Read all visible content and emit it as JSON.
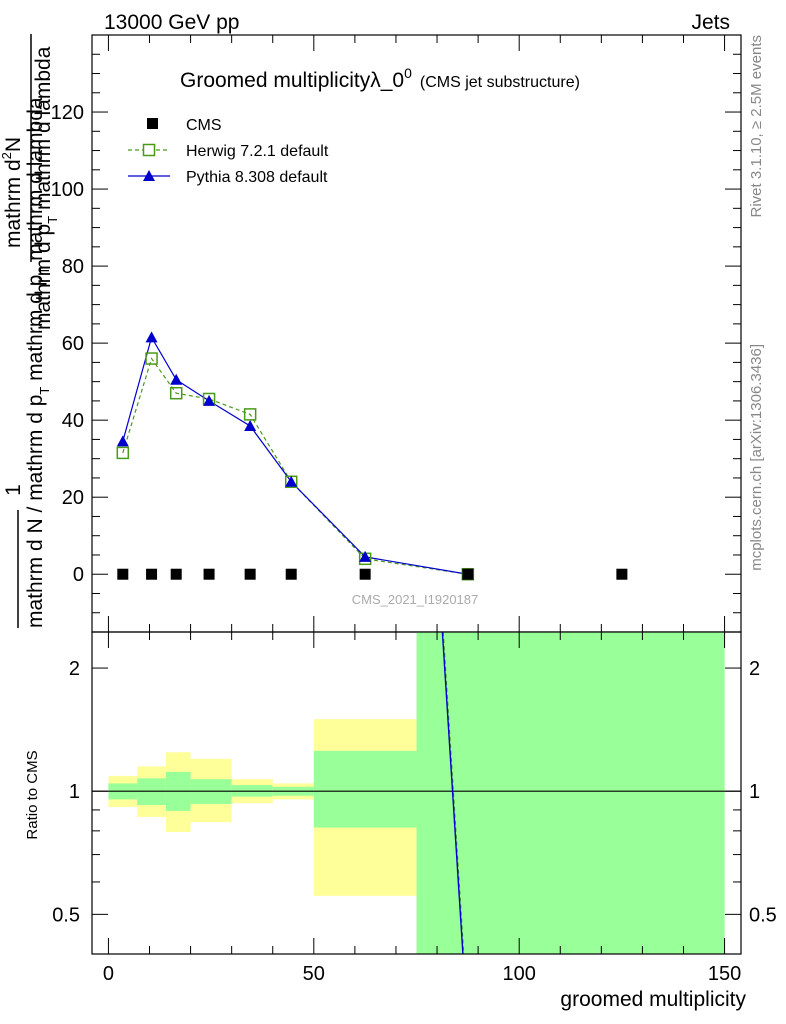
{
  "header": {
    "left": "13000 GeV pp",
    "right": "Jets"
  },
  "side_labels": {
    "rivet": "Rivet 3.1.10, ≥ 2.5M events",
    "mcplots": "mcplots.cern.ch [arXiv:1306.3436]"
  },
  "colors": {
    "herwig": "#4a9a1a",
    "pythia": "#0000cc",
    "band_outer": "#ffff99",
    "band_inner": "#99ff99",
    "cms": "#000000"
  },
  "chart_data": [
    {
      "type": "line",
      "title": "Groomed multiplicityλ_0",
      "title_sup": "0",
      "title_suffix": "(CMS jet substructure)",
      "ylabel_top": "1",
      "ylabel_numer": "mathrm d",
      "ylabel_numer_sup": "2",
      "ylabel_numer_tail": "N",
      "ylabel_denom": "mathrm d p",
      "ylabel_denom_sub": "T",
      "ylabel_denom_tail": " mathrm d lambda",
      "ylabel_bottom": "mathrm d N / mathrm d p",
      "ylabel_bottom_sub": "T",
      "ylabel_bottom_tail": " mathrm d p",
      "ylabel_bottom_sub2": "T",
      "ylabel_bottom_tail2": " mathrm d lambda",
      "watermark": "CMS_2021_I1920187",
      "xlim": [
        -4,
        154
      ],
      "ylim": [
        -15,
        140
      ],
      "yticks": [
        0,
        20,
        40,
        60,
        80,
        100,
        120
      ],
      "series": [
        {
          "name": "CMS",
          "marker": "square",
          "x": [
            3.5,
            10.5,
            16.5,
            24.5,
            34.5,
            44.5,
            62.5,
            87.5,
            125.0
          ],
          "y": [
            0,
            0,
            0,
            0,
            0,
            0,
            0,
            0,
            0
          ]
        },
        {
          "name": "Herwig 7.2.1 default",
          "marker": "open-square",
          "style": "dashed",
          "x": [
            3.5,
            10.5,
            16.5,
            24.5,
            34.5,
            44.5,
            62.5,
            87.5
          ],
          "y": [
            31.5,
            56,
            47,
            45.5,
            41.5,
            24,
            4,
            0
          ]
        },
        {
          "name": "Pythia 8.308 default",
          "marker": "triangle",
          "style": "solid",
          "x": [
            3.5,
            10.5,
            16.5,
            24.5,
            34.5,
            44.5,
            62.5,
            87.5
          ],
          "y": [
            34.5,
            61.5,
            50.5,
            45,
            38.5,
            24,
            4.5,
            0
          ]
        }
      ]
    },
    {
      "type": "line",
      "ylabel": "Ratio to CMS",
      "xlabel": "groomed multiplicity",
      "xlim": [
        -4,
        154
      ],
      "ylim": [
        0.4,
        2.45
      ],
      "yscale": "log",
      "yticks": [
        0.5,
        1,
        2
      ],
      "xticks": [
        0,
        50,
        100,
        150
      ],
      "bands": [
        {
          "x0": 0,
          "x1": 7,
          "outer": [
            0.915,
            1.09
          ],
          "inner": [
            0.955,
            1.045
          ]
        },
        {
          "x0": 7,
          "x1": 14,
          "outer": [
            0.865,
            1.15
          ],
          "inner": [
            0.925,
            1.075
          ]
        },
        {
          "x0": 14,
          "x1": 20,
          "outer": [
            0.795,
            1.245
          ],
          "inner": [
            0.895,
            1.115
          ]
        },
        {
          "x0": 20,
          "x1": 30,
          "outer": [
            0.84,
            1.2
          ],
          "inner": [
            0.93,
            1.07
          ]
        },
        {
          "x0": 30,
          "x1": 40,
          "outer": [
            0.935,
            1.07
          ],
          "inner": [
            0.97,
            1.035
          ]
        },
        {
          "x0": 40,
          "x1": 50,
          "outer": [
            0.955,
            1.045
          ],
          "inner": [
            0.975,
            1.025
          ]
        },
        {
          "x0": 50,
          "x1": 75,
          "outer": [
            0.555,
            1.5
          ],
          "inner": [
            0.815,
            1.255
          ]
        },
        {
          "x0": 75,
          "x1": 150,
          "outer": [
            0.4,
            2.45
          ],
          "inner": [
            0.4,
            2.45
          ]
        }
      ],
      "series": [
        {
          "name": "Pythia 8.308 default",
          "x": [
            81.3,
            86.3
          ],
          "y": [
            2.45,
            0.4
          ]
        },
        {
          "name": "Herwig 7.2.1 default",
          "x": [
            81.5,
            86.5
          ],
          "y": [
            2.45,
            0.4
          ]
        }
      ]
    }
  ]
}
